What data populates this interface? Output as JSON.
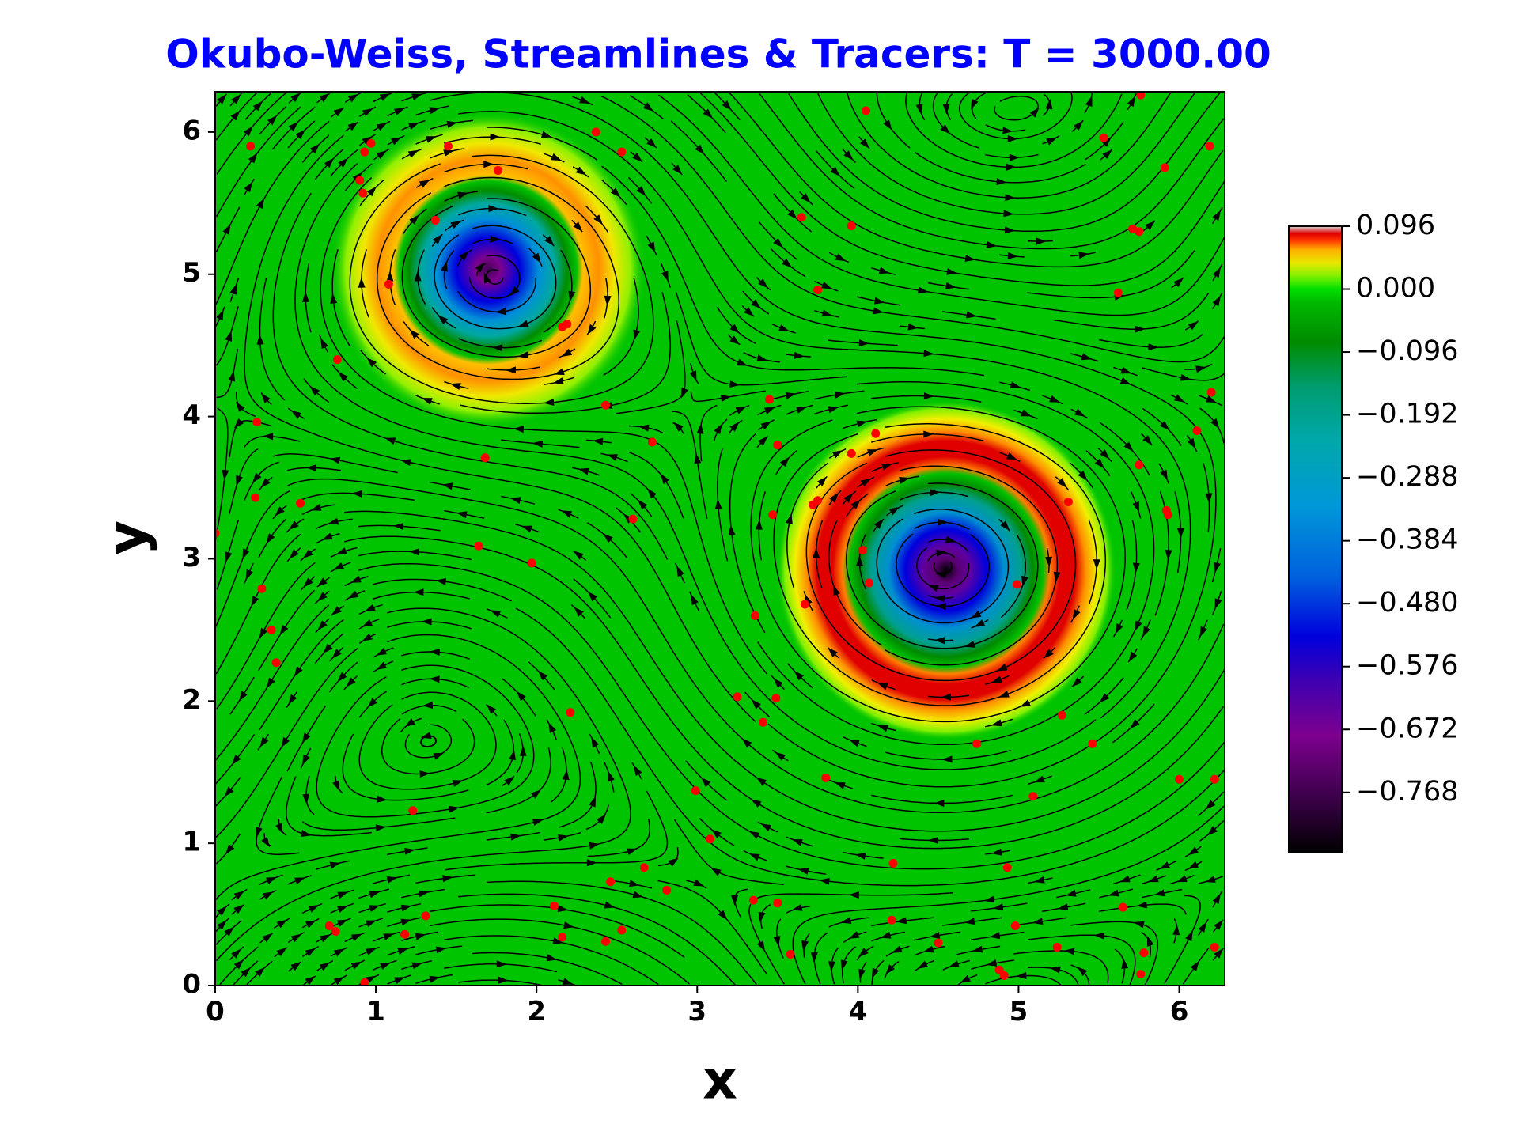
{
  "chart_data": {
    "type": "scatter",
    "title": "Okubo-Weiss, Streamlines & Tracers: T = 3000.00",
    "xlabel": "x",
    "ylabel": "y",
    "xlim": [
      0,
      6.283
    ],
    "ylim": [
      0,
      6.283
    ],
    "xticks": [
      0,
      1,
      2,
      3,
      4,
      5,
      6
    ],
    "yticks": [
      0,
      1,
      2,
      3,
      4,
      5,
      6
    ],
    "color": "#ff0000",
    "title_color": "#0000ff",
    "background_color": "#00c400",
    "x": [
      0.22,
      0.97,
      0.93,
      1.45,
      2.37,
      2.53,
      0.9,
      0.92,
      1.37,
      1.76,
      1.08,
      0.76,
      2.19,
      2.16,
      0.26,
      2.43,
      1.68,
      0.25,
      0.53,
      1.64,
      1.97,
      0.0,
      0.29,
      0.35,
      0.38,
      2.6,
      2.72,
      3.65,
      3.96,
      3.75,
      4.05,
      5.53,
      5.76,
      5.91,
      6.19,
      5.71,
      5.75,
      5.62,
      6.2,
      6.11,
      5.75,
      5.31,
      5.92,
      5.93,
      3.45,
      3.5,
      4.11,
      3.96,
      3.72,
      3.75,
      3.47,
      4.03,
      4.07,
      4.99,
      3.36,
      3.67,
      3.25,
      3.49,
      3.41,
      4.74,
      5.27,
      5.46,
      3.8,
      5.09,
      6.0,
      6.22,
      2.21,
      2.99,
      3.08,
      1.23,
      4.22,
      4.93,
      2.67,
      2.81,
      2.46,
      3.35,
      3.5,
      2.11,
      1.31,
      0.71,
      0.75,
      1.18,
      2.16,
      2.43,
      2.53,
      4.21,
      4.98,
      5.65,
      5.24,
      4.5,
      3.58,
      5.78,
      6.22,
      4.88,
      4.91,
      5.76,
      0.93
    ],
    "y": [
      5.9,
      5.92,
      5.86,
      5.9,
      6.0,
      5.86,
      5.66,
      5.57,
      5.38,
      5.73,
      4.93,
      4.4,
      4.65,
      4.63,
      3.96,
      4.08,
      3.71,
      3.43,
      3.39,
      3.09,
      2.97,
      3.18,
      2.79,
      2.5,
      2.27,
      3.28,
      3.82,
      5.4,
      5.34,
      4.89,
      6.15,
      5.96,
      6.26,
      5.75,
      5.9,
      5.32,
      5.3,
      4.87,
      4.17,
      3.9,
      3.66,
      3.4,
      3.34,
      3.31,
      4.12,
      3.8,
      3.88,
      3.74,
      3.38,
      3.41,
      3.31,
      3.06,
      2.83,
      2.82,
      2.6,
      2.68,
      2.03,
      2.02,
      1.85,
      1.7,
      1.9,
      1.7,
      1.46,
      1.33,
      1.45,
      1.45,
      1.92,
      1.37,
      1.03,
      1.23,
      0.86,
      0.83,
      0.83,
      0.67,
      0.73,
      0.6,
      0.58,
      0.56,
      0.49,
      0.42,
      0.38,
      0.36,
      0.34,
      0.31,
      0.39,
      0.46,
      0.42,
      0.55,
      0.27,
      0.3,
      0.22,
      0.23,
      0.27,
      0.11,
      0.07,
      0.08,
      0.02
    ],
    "colorbar": {
      "clim": [
        -0.86,
        0.096
      ],
      "ticks": [
        0.096,
        {
          "value": 0,
          "label": "0.000"
        },
        {
          "value": -0.096,
          "label": "−0.096"
        },
        {
          "value": -0.192,
          "label": "−0.192"
        },
        {
          "value": -0.288,
          "label": "−0.288"
        },
        {
          "value": -0.384,
          "label": "−0.384"
        },
        {
          "value": -0.48,
          "label": "−0.480"
        },
        {
          "value": -0.576,
          "label": "−0.576"
        },
        {
          "value": -0.672,
          "label": "−0.672"
        },
        {
          "value": -0.768,
          "label": "−0.768"
        }
      ],
      "colormap": [
        [
          -0.86,
          "#000000"
        ],
        [
          -0.77,
          "#40004f"
        ],
        [
          -0.68,
          "#7d008f"
        ],
        [
          -0.6,
          "#4000b0"
        ],
        [
          -0.53,
          "#0000dd"
        ],
        [
          -0.44,
          "#0060dd"
        ],
        [
          -0.33,
          "#0098d8"
        ],
        [
          -0.23,
          "#00a8aa"
        ],
        [
          -0.15,
          "#009c70"
        ],
        [
          -0.08,
          "#008c00"
        ],
        [
          -0.02,
          "#00b800"
        ],
        [
          0,
          "#00e000"
        ],
        [
          0.02,
          "#80f000"
        ],
        [
          0.04,
          "#e8e800"
        ],
        [
          0.06,
          "#ffb000"
        ],
        [
          0.075,
          "#ff3000"
        ],
        [
          0.085,
          "#dd0000"
        ],
        [
          0.096,
          "#d8d8d8"
        ]
      ]
    }
  }
}
